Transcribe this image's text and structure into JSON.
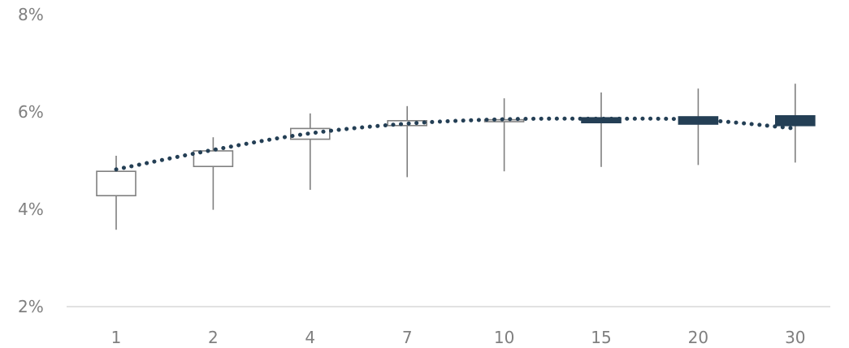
{
  "chart_data": {
    "type": "candlestick",
    "categories": [
      "1",
      "2",
      "4",
      "7",
      "10",
      "15",
      "20",
      "30"
    ],
    "y_ticks": [
      "2%",
      "4%",
      "6%",
      "8%"
    ],
    "ylim": [
      2,
      8
    ],
    "grid": false,
    "legend": "none",
    "candles": [
      {
        "x": "1",
        "open": 4.28,
        "close": 4.78,
        "high": 5.1,
        "low": 3.58,
        "filled": false
      },
      {
        "x": "2",
        "open": 4.88,
        "close": 5.2,
        "high": 5.48,
        "low": 3.99,
        "filled": false
      },
      {
        "x": "4",
        "open": 5.44,
        "close": 5.66,
        "high": 5.97,
        "low": 4.4,
        "filled": false
      },
      {
        "x": "7",
        "open": 5.72,
        "close": 5.82,
        "high": 6.12,
        "low": 4.66,
        "filled": false
      },
      {
        "x": "10",
        "open": 5.8,
        "close": 5.84,
        "high": 6.28,
        "low": 4.78,
        "filled": false
      },
      {
        "x": "15",
        "open": 5.78,
        "close": 5.88,
        "high": 6.4,
        "low": 4.87,
        "filled": true
      },
      {
        "x": "20",
        "open": 5.75,
        "close": 5.9,
        "high": 6.48,
        "low": 4.91,
        "filled": true
      },
      {
        "x": "30",
        "open": 5.72,
        "close": 5.92,
        "high": 6.58,
        "low": 4.96,
        "filled": true
      }
    ],
    "trend": {
      "style": "dotted",
      "values": [
        4.82,
        5.22,
        5.56,
        5.76,
        5.85,
        5.86,
        5.84,
        5.66
      ]
    },
    "colors": {
      "candle_outline": "#808080",
      "candle_filled": "#243f55",
      "trend": "#243f55",
      "axis": "#d9d9d9",
      "tick_text": "#7f7f7f"
    }
  }
}
